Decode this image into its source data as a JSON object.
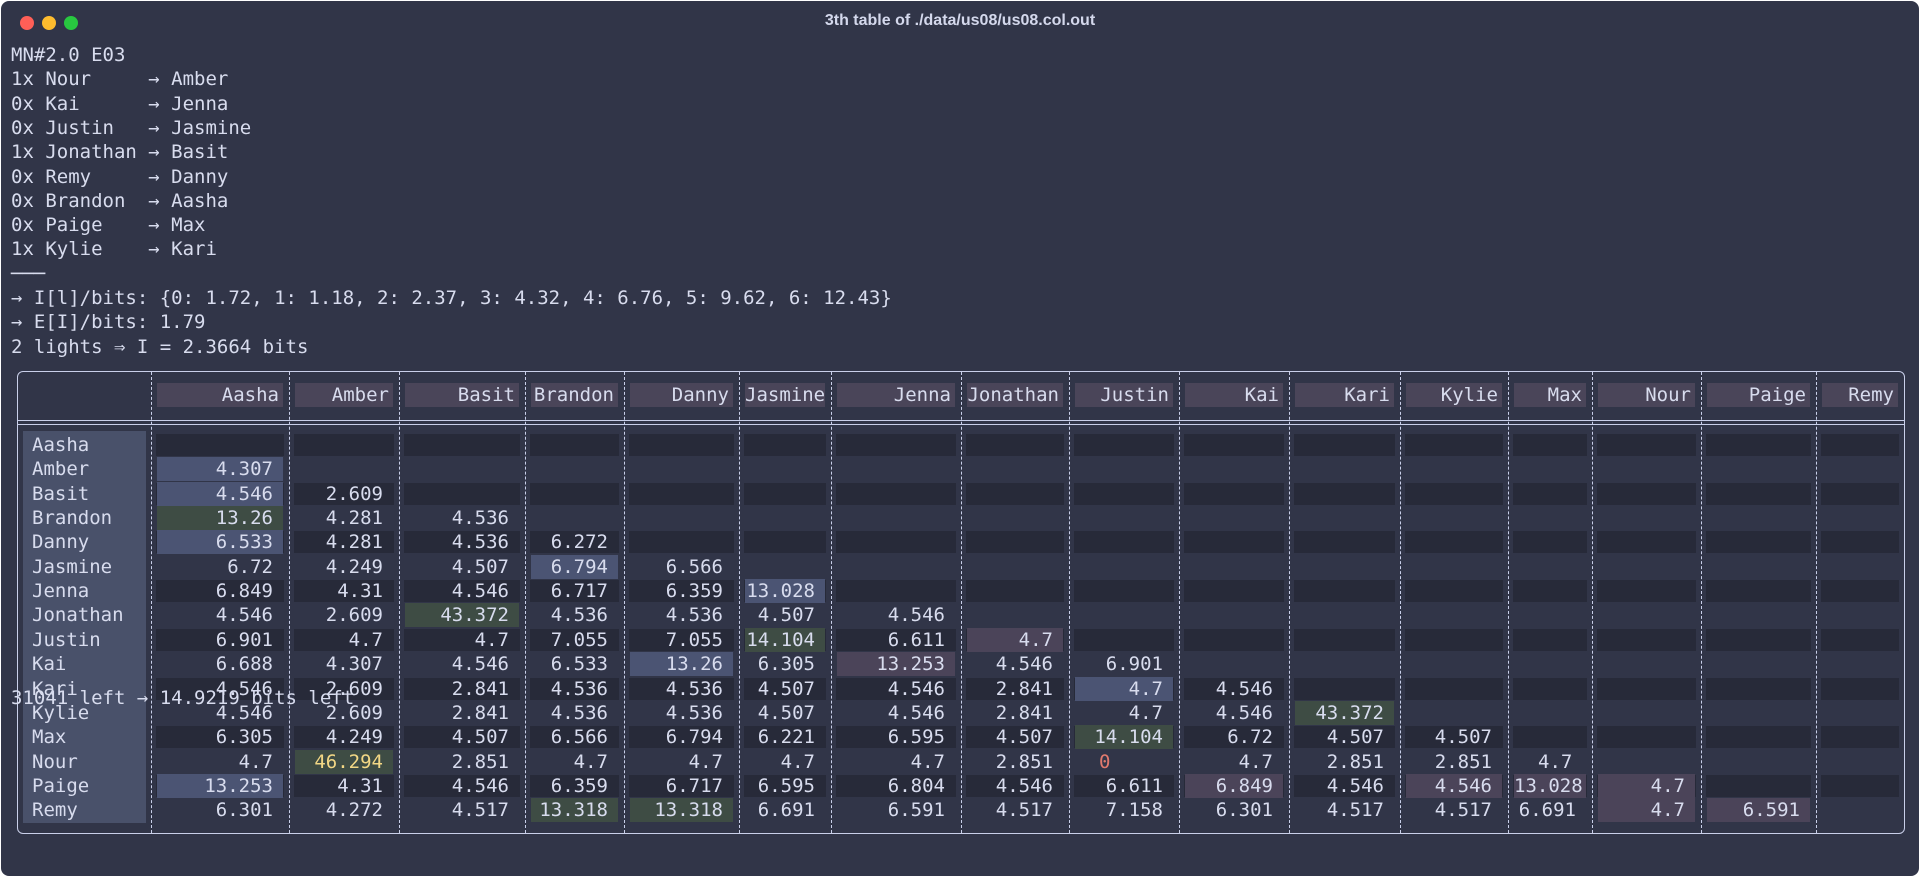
{
  "window": {
    "title": "3th table of ./data/us08/us08.col.out"
  },
  "header_lines": [
    "MN#2.0 E03",
    "1x Nour     → Amber",
    "0x Kai      → Jenna",
    "0x Justin   → Jasmine",
    "1x Jonathan → Basit",
    "0x Remy     → Danny",
    "0x Brandon  → Aasha",
    "0x Paige    → Max",
    "1x Kylie    → Kari",
    "───",
    "→ I[l]/bits: {0: 1.72, 1: 1.18, 2: 2.37, 3: 4.32, 4: 6.76, 5: 9.62, 6: 12.43}",
    "→ E[I]/bits: 1.79",
    "2 lights ⇒ I = 2.3664 bits"
  ],
  "table": {
    "columns": [
      "Aasha",
      "Amber",
      "Basit",
      "Brandon",
      "Danny",
      "Jasmine",
      "Jenna",
      "Jonathan",
      "Justin",
      "Kai",
      "Kari",
      "Kylie",
      "Max",
      "Nour",
      "Paige",
      "Remy"
    ],
    "rows": [
      {
        "name": "Aasha",
        "cells": [
          "",
          "",
          "",
          "",
          "",
          "",
          "",
          "",
          "",
          "",
          "",
          "",
          "",
          "",
          "",
          ""
        ]
      },
      {
        "name": "Amber",
        "cells": [
          "4.307",
          "",
          "",
          "",
          "",
          "",
          "",
          "",
          "",
          "",
          "",
          "",
          "",
          "",
          "",
          ""
        ]
      },
      {
        "name": "Basit",
        "cells": [
          "4.546",
          "2.609",
          "",
          "",
          "",
          "",
          "",
          "",
          "",
          "",
          "",
          "",
          "",
          "",
          "",
          ""
        ]
      },
      {
        "name": "Brandon",
        "cells": [
          "13.26",
          "4.281",
          "4.536",
          "",
          "",
          "",
          "",
          "",
          "",
          "",
          "",
          "",
          "",
          "",
          "",
          ""
        ]
      },
      {
        "name": "Danny",
        "cells": [
          "6.533",
          "4.281",
          "4.536",
          "6.272",
          "",
          "",
          "",
          "",
          "",
          "",
          "",
          "",
          "",
          "",
          "",
          ""
        ]
      },
      {
        "name": "Jasmine",
        "cells": [
          "6.72",
          "4.249",
          "4.507",
          "6.794",
          "6.566",
          "",
          "",
          "",
          "",
          "",
          "",
          "",
          "",
          "",
          "",
          ""
        ]
      },
      {
        "name": "Jenna",
        "cells": [
          "6.849",
          "4.31",
          "4.546",
          "6.717",
          "6.359",
          "13.028",
          "",
          "",
          "",
          "",
          "",
          "",
          "",
          "",
          "",
          ""
        ]
      },
      {
        "name": "Jonathan",
        "cells": [
          "4.546",
          "2.609",
          "43.372",
          "4.536",
          "4.536",
          "4.507",
          "4.546",
          "",
          "",
          "",
          "",
          "",
          "",
          "",
          "",
          ""
        ]
      },
      {
        "name": "Justin",
        "cells": [
          "6.901",
          "4.7",
          "4.7",
          "7.055",
          "7.055",
          "14.104",
          "6.611",
          "4.7",
          "",
          "",
          "",
          "",
          "",
          "",
          "",
          ""
        ]
      },
      {
        "name": "Kai",
        "cells": [
          "6.688",
          "4.307",
          "4.546",
          "6.533",
          "13.26",
          "6.305",
          "13.253",
          "4.546",
          "6.901",
          "",
          "",
          "",
          "",
          "",
          "",
          ""
        ]
      },
      {
        "name": "Kari",
        "cells": [
          "4.546",
          "2.609",
          "2.841",
          "4.536",
          "4.536",
          "4.507",
          "4.546",
          "2.841",
          "4.7",
          "4.546",
          "",
          "",
          "",
          "",
          "",
          ""
        ]
      },
      {
        "name": "Kylie",
        "cells": [
          "4.546",
          "2.609",
          "2.841",
          "4.536",
          "4.536",
          "4.507",
          "4.546",
          "2.841",
          "4.7",
          "4.546",
          "43.372",
          "",
          "",
          "",
          "",
          ""
        ]
      },
      {
        "name": "Max",
        "cells": [
          "6.305",
          "4.249",
          "4.507",
          "6.566",
          "6.794",
          "6.221",
          "6.595",
          "4.507",
          "14.104",
          "6.72",
          "4.507",
          "4.507",
          "",
          "",
          "",
          ""
        ]
      },
      {
        "name": "Nour",
        "cells": [
          "4.7",
          "46.294",
          "2.851",
          "4.7",
          "4.7",
          "4.7",
          "4.7",
          "2.851",
          "0",
          "4.7",
          "2.851",
          "2.851",
          "4.7",
          "",
          "",
          ""
        ]
      },
      {
        "name": "Paige",
        "cells": [
          "13.253",
          "4.31",
          "4.546",
          "6.359",
          "6.717",
          "6.595",
          "6.804",
          "4.546",
          "6.611",
          "6.849",
          "4.546",
          "4.546",
          "13.028",
          "4.7",
          "",
          ""
        ]
      },
      {
        "name": "Remy",
        "cells": [
          "6.301",
          "4.272",
          "4.517",
          "13.318",
          "13.318",
          "6.691",
          "6.591",
          "4.517",
          "7.158",
          "6.301",
          "4.517",
          "4.517",
          "6.691",
          "4.7",
          "6.591",
          ""
        ]
      }
    ]
  },
  "footer": "31041 left → 14.9219 bits left",
  "colors": {
    "background": "#313548",
    "text": "#d8dcee",
    "highlight_blue": "#4b5473",
    "highlight_green": "#3e4c44",
    "highlight_purple": "#4b4459",
    "highlight_yellow_text": "#f2d785",
    "zero_red": "#e07a6e"
  }
}
